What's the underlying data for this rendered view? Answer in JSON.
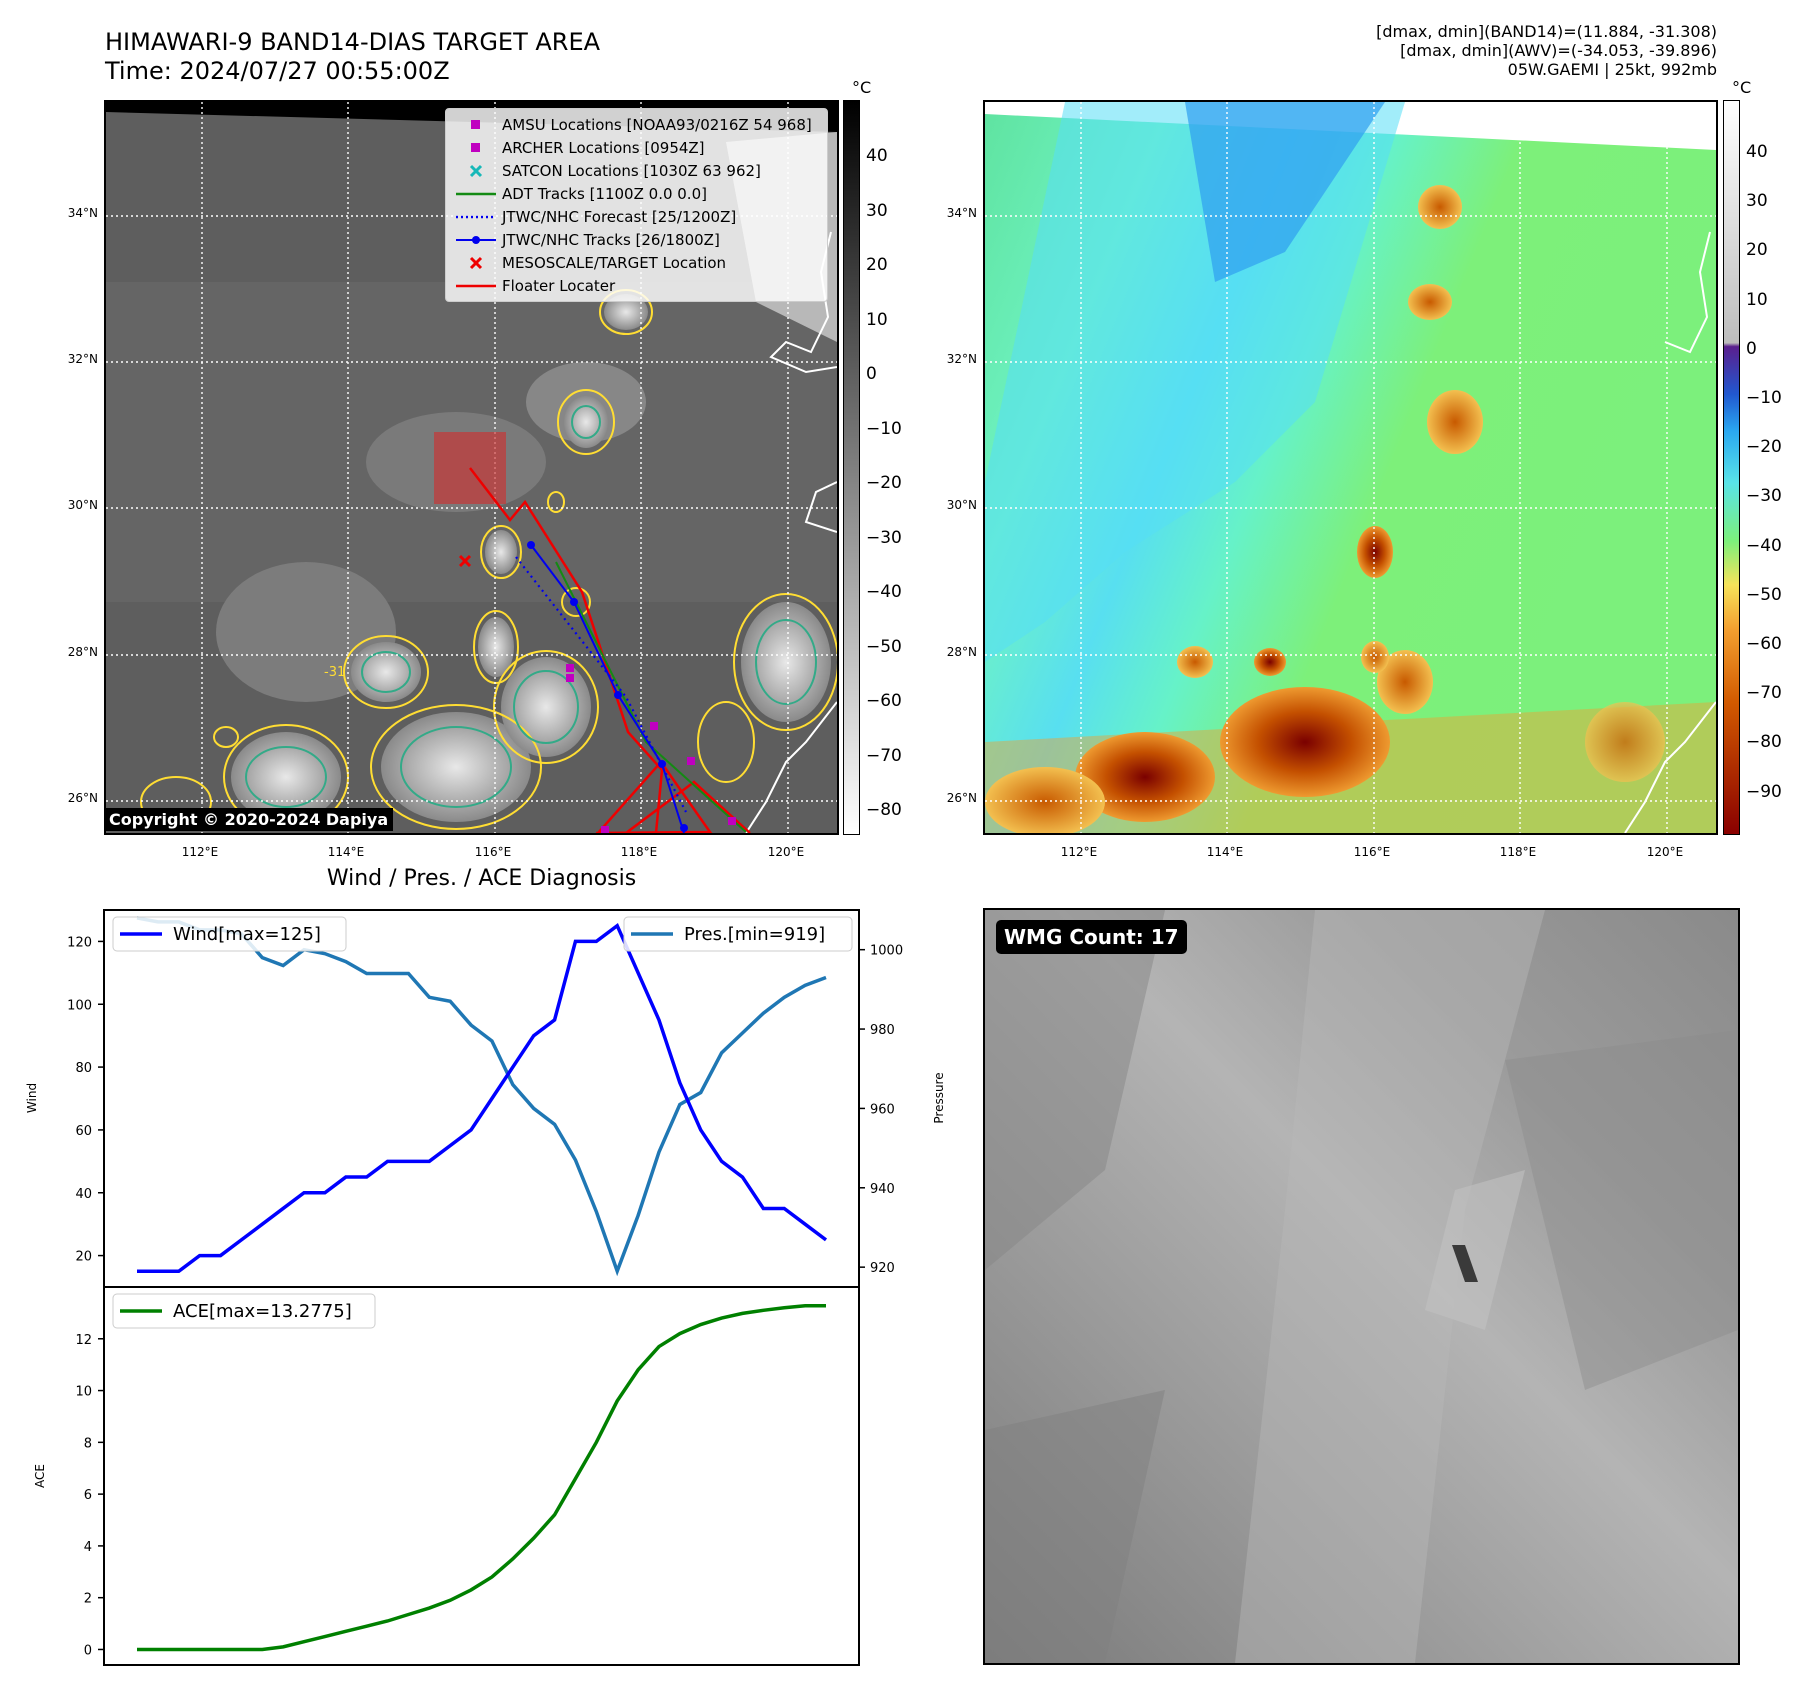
{
  "header": {
    "title_line1": "HIMAWARI-9 BAND14-DIAS TARGET AREA",
    "title_line2": "Time: 2024/07/27 00:55:00Z",
    "info_line1": "[dmax, dmin](BAND14)=(11.884, -31.308)",
    "info_line2": "[dmax, dmin](AWV)=(-34.053, -39.896)",
    "info_line3": "05W.GAEMI | 25kt, 992mb"
  },
  "map_axes": {
    "lat_labels": [
      "34°N",
      "32°N",
      "30°N",
      "28°N",
      "26°N"
    ],
    "lon_labels": [
      "112°E",
      "114°E",
      "116°E",
      "118°E",
      "120°E"
    ]
  },
  "colorbar_ir": {
    "unit": "°C",
    "ticks": [
      "40",
      "30",
      "20",
      "10",
      "0",
      "−10",
      "−20",
      "−30",
      "−40",
      "−50",
      "−60",
      "−70",
      "−80"
    ]
  },
  "colorbar_wv": {
    "unit": "°C",
    "ticks": [
      "40",
      "30",
      "20",
      "10",
      "0",
      "−10",
      "−20",
      "−30",
      "−40",
      "−50",
      "−60",
      "−70",
      "−80",
      "−90"
    ]
  },
  "legend": {
    "items": [
      {
        "label": "AMSU Locations [NOAA93/0216Z 54 968]",
        "symbol": "square",
        "color": "#c000c0"
      },
      {
        "label": "ARCHER Locations [0954Z]",
        "symbol": "square",
        "color": "#c000c0"
      },
      {
        "label": "SATCON Locations [1030Z 63 962]",
        "symbol": "x",
        "color": "#17b8b8"
      },
      {
        "label": "ADT Tracks [1100Z 0.0 0.0]",
        "symbol": "line",
        "color": "#138a13"
      },
      {
        "label": "JTWC/NHC Forecast [25/1200Z]",
        "symbol": "dotted",
        "color": "#0000ee"
      },
      {
        "label": "JTWC/NHC Tracks [26/1800Z]",
        "symbol": "linedot",
        "color": "#0000ee"
      },
      {
        "label": "MESOSCALE/TARGET Location",
        "symbol": "x",
        "color": "#ee0000"
      },
      {
        "label": "Floater Locater",
        "symbol": "line",
        "color": "#ee0000"
      }
    ]
  },
  "copyright": "Copyright © 2020-2024 Dapiya",
  "contour_label": "-31",
  "wmg_count": "WMG Count: 17",
  "diagnosis": {
    "title": "Wind / Pres. / ACE Diagnosis",
    "wind_legend": "Wind[max=125]",
    "pres_legend": "Pres.[min=919]",
    "ace_legend": "ACE[max=13.2775]",
    "wind_ylabel": "Wind",
    "pres_ylabel": "Pressure",
    "ace_ylabel": "ACE"
  },
  "chart_data": [
    {
      "type": "line",
      "name": "wind_pressure",
      "x": [
        0,
        1,
        2,
        3,
        4,
        5,
        6,
        7,
        8,
        9,
        10,
        11,
        12,
        13,
        14,
        15,
        16,
        17,
        18,
        19,
        20,
        21,
        22,
        23,
        24,
        25,
        26,
        27,
        28,
        29,
        30,
        31,
        32,
        33
      ],
      "series": [
        {
          "name": "Wind[max=125]",
          "axis": "left",
          "color": "#0000ff",
          "values": [
            15,
            15,
            15,
            20,
            20,
            25,
            30,
            35,
            40,
            40,
            45,
            45,
            50,
            50,
            50,
            55,
            60,
            70,
            80,
            90,
            95,
            120,
            120,
            125,
            110,
            95,
            75,
            60,
            50,
            45,
            35,
            35,
            30,
            25
          ]
        },
        {
          "name": "Pres.[min=919]",
          "axis": "right",
          "color": "#1f77b4",
          "values": [
            1008,
            1007,
            1007,
            1005,
            1005,
            1004,
            998,
            996,
            1000,
            999,
            997,
            994,
            994,
            994,
            988,
            987,
            981,
            977,
            966,
            960,
            956,
            947,
            934,
            919,
            933,
            949,
            961,
            964,
            974,
            979,
            984,
            988,
            991,
            993
          ]
        }
      ],
      "ylabel": "Wind",
      "y2label": "Pressure",
      "ylim": [
        10,
        130
      ],
      "y2lim": [
        915,
        1010
      ],
      "yticks": [
        20,
        40,
        60,
        80,
        100,
        120
      ],
      "y2ticks": [
        920,
        940,
        960,
        980,
        1000
      ]
    },
    {
      "type": "line",
      "name": "ace",
      "x": [
        0,
        1,
        2,
        3,
        4,
        5,
        6,
        7,
        8,
        9,
        10,
        11,
        12,
        13,
        14,
        15,
        16,
        17,
        18,
        19,
        20,
        21,
        22,
        23,
        24,
        25,
        26,
        27,
        28,
        29,
        30,
        31,
        32,
        33
      ],
      "series": [
        {
          "name": "ACE[max=13.2775]",
          "color": "#008000",
          "values": [
            0,
            0,
            0,
            0,
            0,
            0,
            0,
            0.1,
            0.3,
            0.5,
            0.7,
            0.9,
            1.1,
            1.35,
            1.6,
            1.9,
            2.3,
            2.8,
            3.5,
            4.3,
            5.2,
            6.6,
            8.0,
            9.6,
            10.8,
            11.7,
            12.2,
            12.55,
            12.8,
            12.98,
            13.1,
            13.2,
            13.2775,
            13.2775
          ]
        }
      ],
      "ylabel": "ACE",
      "ylim": [
        -0.6,
        14
      ],
      "yticks": [
        0,
        2,
        4,
        6,
        8,
        10,
        12
      ]
    }
  ]
}
